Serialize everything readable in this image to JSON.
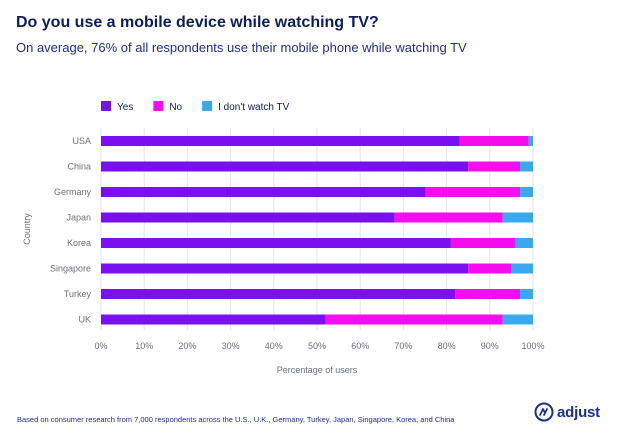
{
  "chart_data": {
    "type": "bar",
    "orientation": "horizontal",
    "stacked": true,
    "title": "Do you use a mobile device while watching TV?",
    "subtitle": "On average, 76% of all respondents use their mobile phone while watching TV",
    "xlabel": "Percentage of users",
    "ylabel": "Country",
    "xlim": [
      0,
      100
    ],
    "x_ticks": [
      "0%",
      "10%",
      "20%",
      "30%",
      "40%",
      "50%",
      "60%",
      "70%",
      "80%",
      "90%",
      "100%"
    ],
    "legend_position": "top-left",
    "grid": "vertical",
    "categories": [
      "USA",
      "China",
      "Germany",
      "Japan",
      "Korea",
      "Singapore",
      "Turkey",
      "UK"
    ],
    "series": [
      {
        "name": "Yes",
        "color": "#7a10f0",
        "values": [
          83,
          85,
          75,
          68,
          81,
          85,
          82,
          52
        ]
      },
      {
        "name": "No",
        "color": "#f60dee",
        "values": [
          16,
          12,
          22,
          25,
          15,
          10,
          15,
          41
        ]
      },
      {
        "name": "I don't watch TV",
        "color": "#3aa8ec",
        "values": [
          1,
          3,
          3,
          7,
          4,
          5,
          3,
          7
        ]
      }
    ],
    "footnote": "Based on consumer research from 7,000 respondents across the U.S., U.K., Germany, Turkey, Japan, Singapore, Korea, and China"
  },
  "brand": {
    "logo_text": "adjust",
    "logo_icon": "adjust-logo-icon",
    "accent_color": "#1c2f8f"
  }
}
